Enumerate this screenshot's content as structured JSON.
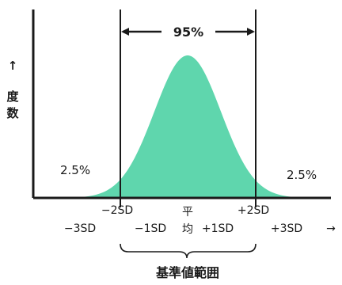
{
  "y_axis_label": {
    "arrow": "↑",
    "chars": [
      "度",
      "数"
    ]
  },
  "interval_label": "95%",
  "tail_left": "2.5%",
  "tail_right": "2.5%",
  "x_axis": {
    "upper": {
      "minus2": "−2SD",
      "mean": "平",
      "plus2": "+2SD"
    },
    "lower": {
      "minus3": "−3SD",
      "minus1": "−1SD",
      "mean": "均",
      "plus1": "+1SD",
      "plus3": "+3SD"
    },
    "arrow": "→"
  },
  "caption": "基準値範囲",
  "colors": {
    "fill": "#5fd6ad",
    "line": "#1a1a1a",
    "background": "#ffffff"
  }
}
